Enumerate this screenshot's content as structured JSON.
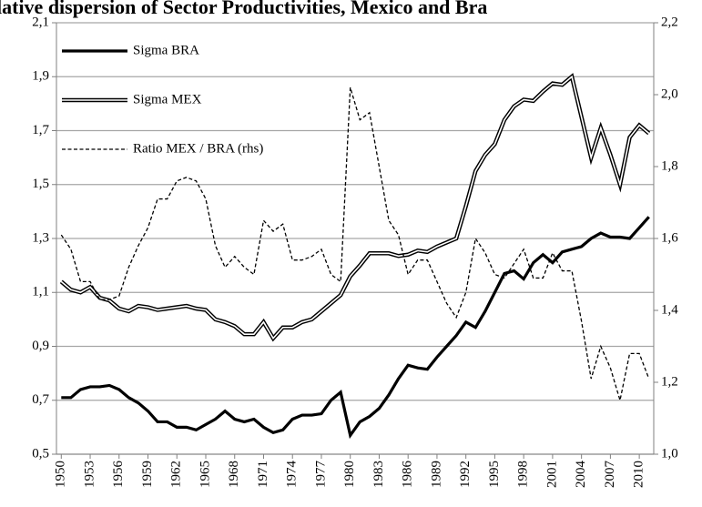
{
  "chart_data": {
    "type": "line",
    "title": "lative dispersion of Sector Productivities, Mexico and Bra",
    "x": [
      1950,
      1951,
      1952,
      1953,
      1954,
      1955,
      1956,
      1957,
      1958,
      1959,
      1960,
      1961,
      1962,
      1963,
      1964,
      1965,
      1966,
      1967,
      1968,
      1969,
      1970,
      1971,
      1972,
      1973,
      1974,
      1975,
      1976,
      1977,
      1978,
      1979,
      1980,
      1981,
      1982,
      1983,
      1984,
      1985,
      1986,
      1987,
      1988,
      1989,
      1990,
      1991,
      1992,
      1993,
      1994,
      1995,
      1996,
      1997,
      1998,
      1999,
      2000,
      2001,
      2002,
      2003,
      2004,
      2005,
      2006,
      2007,
      2008,
      2009,
      2010,
      2011
    ],
    "xlim": [
      1949.5,
      2011.5
    ],
    "xticks": [
      1950,
      1953,
      1956,
      1959,
      1962,
      1965,
      1968,
      1971,
      1974,
      1977,
      1980,
      1983,
      1986,
      1989,
      1992,
      1995,
      1998,
      2001,
      2004,
      2007,
      2010
    ],
    "ylim": [
      0.5,
      2.1
    ],
    "yticks": [
      {
        "value": 0.5,
        "label": "0,5"
      },
      {
        "value": 0.7,
        "label": "0,7"
      },
      {
        "value": 0.9,
        "label": "0,9"
      },
      {
        "value": 1.1,
        "label": "1,1"
      },
      {
        "value": 1.3,
        "label": "1,3"
      },
      {
        "value": 1.5,
        "label": "1,5"
      },
      {
        "value": 1.7,
        "label": "1,7"
      },
      {
        "value": 1.9,
        "label": "1,9"
      },
      {
        "value": 2.1,
        "label": "2,1"
      }
    ],
    "y2lim": [
      1.0,
      2.2
    ],
    "y2ticks": [
      {
        "value": 1.0,
        "label": "1,0"
      },
      {
        "value": 1.2,
        "label": "1,2"
      },
      {
        "value": 1.4,
        "label": "1,4"
      },
      {
        "value": 1.6,
        "label": "1,6"
      },
      {
        "value": 1.8,
        "label": "1,8"
      },
      {
        "value": 2.0,
        "label": "2,0"
      },
      {
        "value": 2.2,
        "label": "2,2"
      }
    ],
    "grid": true,
    "legend": "top-left",
    "series": [
      {
        "name": "Sigma BRA",
        "color": "#000000",
        "style": "solid",
        "values": [
          0.71,
          0.71,
          0.74,
          0.75,
          0.75,
          0.755,
          0.74,
          0.71,
          0.69,
          0.66,
          0.62,
          0.62,
          0.6,
          0.6,
          0.59,
          0.61,
          0.63,
          0.66,
          0.63,
          0.62,
          0.63,
          0.6,
          0.58,
          0.59,
          0.63,
          0.645,
          0.645,
          0.65,
          0.7,
          0.73,
          0.57,
          0.62,
          0.64,
          0.67,
          0.72,
          0.78,
          0.83,
          0.82,
          0.815,
          0.86,
          0.9,
          0.94,
          0.99,
          0.97,
          1.03,
          1.1,
          1.17,
          1.18,
          1.15,
          1.21,
          1.24,
          1.21,
          1.25,
          1.26,
          1.27,
          1.3,
          1.32,
          1.305,
          1.305,
          1.3,
          1.34,
          1.38
        ]
      },
      {
        "name": "Sigma MEX",
        "color": "#000000",
        "style": "double",
        "values": [
          1.14,
          1.11,
          1.1,
          1.12,
          1.08,
          1.07,
          1.04,
          1.03,
          1.05,
          1.045,
          1.035,
          1.04,
          1.045,
          1.05,
          1.04,
          1.035,
          1.0,
          0.99,
          0.975,
          0.945,
          0.945,
          0.99,
          0.93,
          0.97,
          0.97,
          0.99,
          1.0,
          1.03,
          1.06,
          1.09,
          1.16,
          1.2,
          1.245,
          1.245,
          1.245,
          1.235,
          1.24,
          1.255,
          1.25,
          1.27,
          1.285,
          1.3,
          1.42,
          1.55,
          1.61,
          1.65,
          1.74,
          1.79,
          1.815,
          1.81,
          1.845,
          1.875,
          1.87,
          1.9,
          1.75,
          1.6,
          1.71,
          1.61,
          1.5,
          1.675,
          1.72,
          1.69
        ]
      },
      {
        "name": "Ratio MEX / BRA (rhs)",
        "color": "#000000",
        "style": "dashed",
        "axis": "y2",
        "values": [
          1.61,
          1.57,
          1.48,
          1.48,
          1.43,
          1.43,
          1.44,
          1.52,
          1.58,
          1.63,
          1.71,
          1.71,
          1.76,
          1.77,
          1.76,
          1.71,
          1.58,
          1.52,
          1.55,
          1.52,
          1.5,
          1.65,
          1.62,
          1.64,
          1.54,
          1.54,
          1.55,
          1.57,
          1.5,
          1.48,
          2.02,
          1.93,
          1.95,
          1.8,
          1.65,
          1.61,
          1.5,
          1.54,
          1.54,
          1.48,
          1.42,
          1.38,
          1.45,
          1.6,
          1.56,
          1.5,
          1.49,
          1.53,
          1.57,
          1.49,
          1.49,
          1.56,
          1.51,
          1.51,
          1.37,
          1.21,
          1.3,
          1.24,
          1.15,
          1.28,
          1.28,
          1.21
        ]
      }
    ]
  }
}
